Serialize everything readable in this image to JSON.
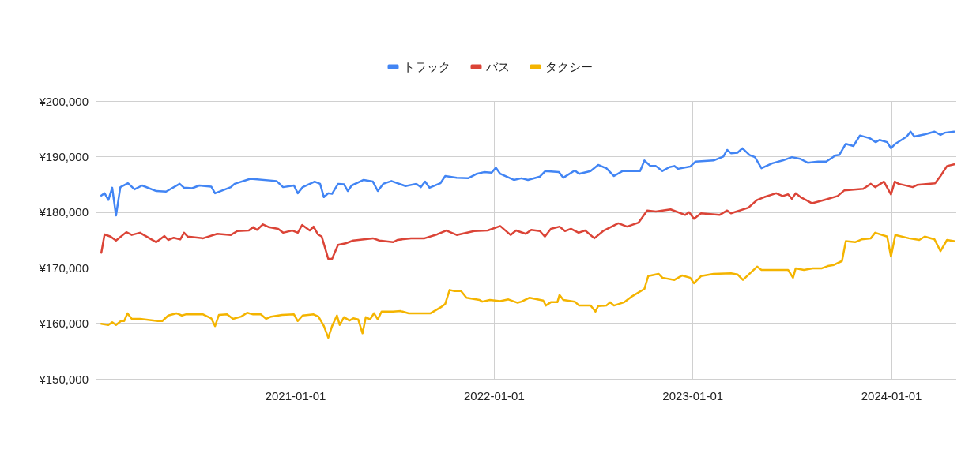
{
  "chart_data": {
    "type": "line",
    "xlim": [
      "2020-01-01",
      "2024-04-29"
    ],
    "xticks": [
      "2021-01-01",
      "2022-01-01",
      "2023-01-01",
      "2024-01-01"
    ],
    "ylim": [
      150000,
      200000
    ],
    "yticks": [
      {
        "value": 150000,
        "label": "¥150,000"
      },
      {
        "value": 160000,
        "label": "¥160,000"
      },
      {
        "value": 170000,
        "label": "¥170,000"
      },
      {
        "value": 180000,
        "label": "¥180,000"
      },
      {
        "value": 190000,
        "label": "¥190,000"
      },
      {
        "value": 200000,
        "label": "¥200,000"
      }
    ],
    "grid": true,
    "legend": "top",
    "marker": "none",
    "line_style": "solid",
    "series": [
      {
        "name": "トラック",
        "color": "#4285f4",
        "x": [
          "2020-01-10",
          "2020-01-16",
          "2020-01-23",
          "2020-01-30",
          "2020-02-06",
          "2020-02-14",
          "2020-02-28",
          "2020-03-11",
          "2020-03-25",
          "2020-04-20",
          "2020-05-08",
          "2020-06-02",
          "2020-06-10",
          "2020-06-25",
          "2020-07-08",
          "2020-07-30",
          "2020-08-06",
          "2020-09-04",
          "2020-09-11",
          "2020-10-10",
          "2020-11-27",
          "2020-12-09",
          "2020-12-29",
          "2021-01-05",
          "2021-01-14",
          "2021-02-05",
          "2021-02-15",
          "2021-02-22",
          "2021-03-02",
          "2021-03-09",
          "2021-03-20",
          "2021-03-31",
          "2021-04-07",
          "2021-04-14",
          "2021-05-06",
          "2021-05-23",
          "2021-06-01",
          "2021-06-11",
          "2021-06-26",
          "2021-07-22",
          "2021-08-11",
          "2021-08-19",
          "2021-08-27",
          "2021-09-04",
          "2021-09-24",
          "2021-10-03",
          "2021-10-24",
          "2021-11-14",
          "2021-11-30",
          "2021-12-13",
          "2021-12-27",
          "2022-01-04",
          "2022-01-12",
          "2022-02-06",
          "2022-02-20",
          "2022-03-04",
          "2022-03-26",
          "2022-04-05",
          "2022-04-30",
          "2022-05-08",
          "2022-05-29",
          "2022-06-06",
          "2022-06-27",
          "2022-07-11",
          "2022-07-26",
          "2022-08-09",
          "2022-08-25",
          "2022-09-26",
          "2022-10-04",
          "2022-10-15",
          "2022-10-25",
          "2022-11-06",
          "2022-11-19",
          "2022-11-28",
          "2022-12-05",
          "2022-12-27",
          "2023-01-06",
          "2023-02-08",
          "2023-02-26",
          "2023-03-05",
          "2023-03-12",
          "2023-03-24",
          "2023-04-02",
          "2023-04-15",
          "2023-04-25",
          "2023-05-07",
          "2023-05-27",
          "2023-06-15",
          "2023-07-02",
          "2023-07-17",
          "2023-07-31",
          "2023-08-19",
          "2023-09-03",
          "2023-09-20",
          "2023-09-27",
          "2023-10-09",
          "2023-10-23",
          "2023-11-04",
          "2023-11-22",
          "2023-12-03",
          "2023-12-10",
          "2023-12-24",
          "2023-12-31",
          "2024-01-08",
          "2024-01-29",
          "2024-02-05",
          "2024-02-12",
          "2024-03-02",
          "2024-03-20",
          "2024-03-31",
          "2024-04-08",
          "2024-04-25"
        ],
        "values": [
          183000,
          183400,
          182200,
          184400,
          179400,
          184500,
          185200,
          184100,
          184800,
          183800,
          183700,
          185100,
          184400,
          184300,
          184800,
          184600,
          183400,
          184500,
          185100,
          186000,
          185600,
          184500,
          184800,
          183400,
          184500,
          185500,
          185100,
          182700,
          183400,
          183300,
          185100,
          185000,
          183800,
          184800,
          185800,
          185500,
          183800,
          185100,
          185600,
          184700,
          185100,
          184500,
          185500,
          184400,
          185200,
          186500,
          186200,
          186100,
          186900,
          187200,
          187100,
          188000,
          186900,
          185800,
          186100,
          185800,
          186400,
          187400,
          187200,
          186200,
          187500,
          186900,
          187400,
          188500,
          187900,
          186500,
          187400,
          187400,
          189300,
          188300,
          188300,
          187400,
          188100,
          188300,
          187800,
          188200,
          189100,
          189300,
          190000,
          191200,
          190600,
          190700,
          191500,
          190300,
          189900,
          187900,
          188800,
          189300,
          189900,
          189600,
          188900,
          189100,
          189100,
          190200,
          190300,
          192300,
          191900,
          193800,
          193300,
          192600,
          193000,
          192600,
          191500,
          192300,
          193600,
          194500,
          193600,
          194000,
          194500,
          193900,
          194300,
          194500
        ]
      },
      {
        "name": "バス",
        "color": "#db4437",
        "x": [
          "2020-01-10",
          "2020-01-16",
          "2020-01-27",
          "2020-02-06",
          "2020-02-25",
          "2020-03-06",
          "2020-03-21",
          "2020-04-20",
          "2020-05-05",
          "2020-05-12",
          "2020-05-22",
          "2020-06-03",
          "2020-06-10",
          "2020-06-17",
          "2020-07-15",
          "2020-08-10",
          "2020-09-04",
          "2020-09-16",
          "2020-10-07",
          "2020-10-15",
          "2020-10-22",
          "2020-11-02",
          "2020-11-13",
          "2020-11-30",
          "2020-12-09",
          "2020-12-26",
          "2021-01-05",
          "2021-01-13",
          "2021-01-27",
          "2021-02-03",
          "2021-02-11",
          "2021-02-18",
          "2021-03-02",
          "2021-03-09",
          "2021-03-20",
          "2021-04-03",
          "2021-04-17",
          "2021-05-23",
          "2021-06-04",
          "2021-06-29",
          "2021-07-07",
          "2021-08-01",
          "2021-08-26",
          "2021-09-18",
          "2021-10-05",
          "2021-10-24",
          "2021-11-25",
          "2021-12-20",
          "2022-01-12",
          "2022-01-31",
          "2022-02-10",
          "2022-02-28",
          "2022-03-10",
          "2022-03-26",
          "2022-04-04",
          "2022-04-15",
          "2022-05-01",
          "2022-05-11",
          "2022-05-22",
          "2022-06-05",
          "2022-06-17",
          "2022-07-04",
          "2022-07-20",
          "2022-08-17",
          "2022-09-02",
          "2022-09-23",
          "2022-10-09",
          "2022-10-25",
          "2022-11-21",
          "2022-12-18",
          "2022-12-25",
          "2023-01-03",
          "2023-01-16",
          "2023-02-19",
          "2023-03-05",
          "2023-03-12",
          "2023-04-13",
          "2023-04-29",
          "2023-05-12",
          "2023-06-03",
          "2023-06-15",
          "2023-06-25",
          "2023-07-02",
          "2023-07-09",
          "2023-07-18",
          "2023-08-08",
          "2023-08-31",
          "2023-09-24",
          "2023-10-06",
          "2023-11-10",
          "2023-11-24",
          "2023-12-02",
          "2023-12-18",
          "2023-12-31",
          "2024-01-07",
          "2024-01-14",
          "2024-02-09",
          "2024-02-17",
          "2024-03-21",
          "2024-03-31",
          "2024-04-12",
          "2024-04-25"
        ],
        "values": [
          172700,
          176000,
          175600,
          174900,
          176400,
          175900,
          176300,
          174600,
          175700,
          175000,
          175400,
          175100,
          176300,
          175600,
          175300,
          176100,
          175900,
          176600,
          176700,
          177300,
          176800,
          177800,
          177300,
          177000,
          176300,
          176700,
          176300,
          177700,
          176700,
          177400,
          176000,
          175600,
          171600,
          171600,
          174100,
          174400,
          174900,
          175300,
          174900,
          174600,
          175000,
          175300,
          175300,
          176000,
          176700,
          175900,
          176600,
          176700,
          177500,
          175900,
          176700,
          176100,
          176800,
          176600,
          175600,
          177000,
          177400,
          176600,
          177000,
          176300,
          176700,
          175300,
          176600,
          178000,
          177400,
          178100,
          180300,
          180100,
          180500,
          179500,
          180000,
          178800,
          179800,
          179500,
          180300,
          179800,
          180800,
          182200,
          182700,
          183400,
          182900,
          183200,
          182400,
          183400,
          182700,
          181600,
          182200,
          182900,
          183900,
          184200,
          185100,
          184500,
          185500,
          183200,
          185500,
          185100,
          184500,
          184900,
          185200,
          186500,
          188300,
          188600
        ]
      },
      {
        "name": "タクシー",
        "color": "#f4b400",
        "x": [
          "2020-01-10",
          "2020-01-23",
          "2020-01-30",
          "2020-02-06",
          "2020-02-15",
          "2020-02-21",
          "2020-02-27",
          "2020-03-06",
          "2020-03-21",
          "2020-04-23",
          "2020-05-01",
          "2020-05-12",
          "2020-05-27",
          "2020-06-06",
          "2020-06-13",
          "2020-07-15",
          "2020-07-30",
          "2020-08-06",
          "2020-08-13",
          "2020-08-28",
          "2020-09-08",
          "2020-09-23",
          "2020-10-04",
          "2020-10-15",
          "2020-10-29",
          "2020-11-08",
          "2020-11-17",
          "2020-12-07",
          "2020-12-29",
          "2021-01-05",
          "2021-01-14",
          "2021-02-03",
          "2021-02-12",
          "2021-02-22",
          "2021-03-02",
          "2021-03-09",
          "2021-03-18",
          "2021-03-23",
          "2021-03-31",
          "2021-04-10",
          "2021-04-17",
          "2021-04-26",
          "2021-05-04",
          "2021-05-10",
          "2021-05-18",
          "2021-05-25",
          "2021-06-01",
          "2021-06-08",
          "2021-06-29",
          "2021-07-13",
          "2021-07-28",
          "2021-09-06",
          "2021-09-25",
          "2021-10-03",
          "2021-10-11",
          "2021-10-20",
          "2021-11-01",
          "2021-11-11",
          "2021-12-05",
          "2021-12-10",
          "2021-12-24",
          "2022-01-12",
          "2022-01-27",
          "2022-02-13",
          "2022-02-20",
          "2022-03-07",
          "2022-04-01",
          "2022-04-06",
          "2022-04-15",
          "2022-04-27",
          "2022-05-01",
          "2022-05-08",
          "2022-05-29",
          "2022-06-06",
          "2022-06-27",
          "2022-07-06",
          "2022-07-11",
          "2022-07-26",
          "2022-08-02",
          "2022-08-09",
          "2022-08-28",
          "2022-09-12",
          "2022-10-04",
          "2022-10-11",
          "2022-10-30",
          "2022-11-06",
          "2022-11-28",
          "2022-12-12",
          "2022-12-27",
          "2023-01-03",
          "2023-01-16",
          "2023-02-08",
          "2023-03-12",
          "2023-03-24",
          "2023-04-03",
          "2023-04-15",
          "2023-04-29",
          "2023-05-07",
          "2023-06-25",
          "2023-07-04",
          "2023-07-09",
          "2023-07-24",
          "2023-08-09",
          "2023-08-26",
          "2023-09-06",
          "2023-09-17",
          "2023-10-02",
          "2023-10-09",
          "2023-10-26",
          "2023-11-07",
          "2023-11-24",
          "2023-12-02",
          "2023-12-24",
          "2023-12-31",
          "2024-01-08",
          "2024-02-02",
          "2024-02-21",
          "2024-03-02",
          "2024-03-20",
          "2024-03-31",
          "2024-04-12",
          "2024-04-25"
        ],
        "values": [
          159900,
          159700,
          160200,
          159700,
          160400,
          160400,
          161800,
          160800,
          160800,
          160400,
          160400,
          161400,
          161800,
          161400,
          161600,
          161600,
          160900,
          159500,
          161500,
          161600,
          160800,
          161200,
          161900,
          161600,
          161600,
          160800,
          161200,
          161500,
          161600,
          160400,
          161400,
          161600,
          161200,
          159500,
          157400,
          159500,
          161400,
          159700,
          161100,
          160500,
          160900,
          160700,
          158200,
          161100,
          160700,
          161800,
          160700,
          162100,
          162100,
          162200,
          161800,
          161800,
          162900,
          163500,
          166000,
          165800,
          165800,
          164600,
          164200,
          163900,
          164200,
          164000,
          164300,
          163700,
          163900,
          164600,
          164100,
          163200,
          163800,
          163800,
          165100,
          164200,
          163900,
          163200,
          163200,
          162100,
          163100,
          163200,
          163800,
          163200,
          163800,
          164900,
          166200,
          168500,
          168900,
          168200,
          167800,
          168600,
          168200,
          167200,
          168500,
          168900,
          169000,
          168800,
          167800,
          168900,
          170200,
          169600,
          169600,
          168200,
          169900,
          169600,
          169900,
          169900,
          170300,
          170500,
          171200,
          174800,
          174600,
          175100,
          175300,
          176300,
          175600,
          172000,
          175900,
          175300,
          175000,
          175600,
          175100,
          173000,
          175000,
          174800
        ]
      }
    ]
  }
}
